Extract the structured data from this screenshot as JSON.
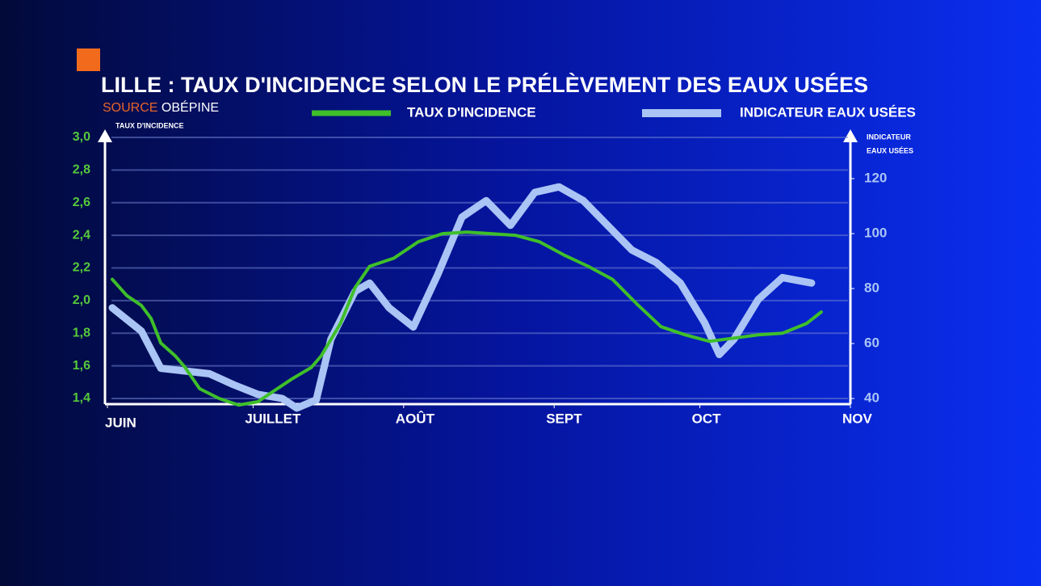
{
  "chart_data": {
    "type": "line",
    "title": "LILLE : TAUX D'INCIDENCE SELON LE PRÉLÈVEMENT DES EAUX USÉES",
    "source": {
      "label": "SOURCE",
      "name": "OBÉPINE"
    },
    "ylabel": "TAUX D'INCIDENCE",
    "y2label": [
      "INDICATEUR",
      "EAUX USÉES"
    ],
    "xlim": [
      0,
      153
    ],
    "xticks": [
      {
        "value": 0,
        "label": "JUIN"
      },
      {
        "value": 30,
        "label": "JUILLET"
      },
      {
        "value": 61,
        "label": "AOÛT"
      },
      {
        "value": 92,
        "label": "SEPT"
      },
      {
        "value": 122,
        "label": "OCT"
      },
      {
        "value": 153,
        "label": "NOV"
      }
    ],
    "ylim": [
      1.4,
      3.0
    ],
    "yticks": [
      {
        "value": 1.4,
        "label": "1,4"
      },
      {
        "value": 1.6,
        "label": "1,6"
      },
      {
        "value": 1.8,
        "label": "1,8"
      },
      {
        "value": 2.0,
        "label": "2,0"
      },
      {
        "value": 2.2,
        "label": "2,2"
      },
      {
        "value": 2.4,
        "label": "2,4"
      },
      {
        "value": 2.6,
        "label": "2,6"
      },
      {
        "value": 2.8,
        "label": "2,8"
      },
      {
        "value": 3.0,
        "label": "3,0"
      }
    ],
    "y2lim": [
      40,
      135
    ],
    "y2ticks": [
      40,
      60,
      80,
      100,
      120
    ],
    "grid": true,
    "series": [
      {
        "name": "TAUX D'INCIDENCE",
        "color": "#3fbf2a",
        "x": [
          1,
          4,
          7,
          9,
          11,
          14,
          16,
          19,
          23,
          27,
          31,
          34,
          38,
          42,
          44,
          48,
          51,
          54,
          59,
          64,
          69,
          74,
          79,
          84,
          89,
          94,
          99,
          104,
          109,
          114,
          119,
          124,
          129,
          134,
          139,
          144,
          147
        ],
        "values": [
          2.13,
          2.03,
          1.97,
          1.89,
          1.74,
          1.66,
          1.59,
          1.46,
          1.4,
          1.36,
          1.38,
          1.44,
          1.52,
          1.59,
          1.66,
          1.86,
          2.08,
          2.21,
          2.26,
          2.36,
          2.41,
          2.42,
          2.41,
          2.4,
          2.36,
          2.28,
          2.21,
          2.13,
          1.98,
          1.84,
          1.79,
          1.75,
          1.77,
          1.79,
          1.8,
          1.86,
          1.93
        ]
      },
      {
        "name": "INDICATEUR EAUX USÉES",
        "color": "#a9c4f5",
        "axis": "y2",
        "x": [
          1,
          7,
          11,
          16,
          21,
          26,
          31,
          36,
          39,
          43,
          46,
          51,
          54,
          58,
          63,
          68,
          73,
          78,
          83,
          88,
          93,
          98,
          103,
          108,
          113,
          118,
          123,
          126,
          129,
          134,
          139,
          145
        ],
        "values": [
          73,
          64.5,
          51,
          50,
          49,
          45,
          41.5,
          40,
          36.5,
          39.5,
          61.5,
          79,
          82,
          73,
          66,
          85,
          106,
          112,
          103,
          115,
          117,
          112,
          103,
          94,
          89.5,
          82,
          67.5,
          56,
          61.5,
          76,
          84,
          82
        ]
      }
    ]
  }
}
